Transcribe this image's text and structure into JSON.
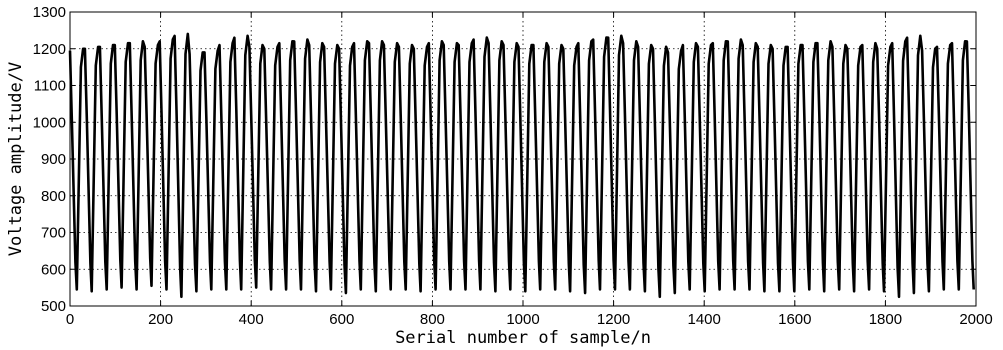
{
  "chart_data": {
    "type": "line",
    "title": "",
    "xlabel": "Serial number of sample/n",
    "ylabel": "Voltage amplitude/V",
    "xlim": [
      0,
      2000
    ],
    "ylim": [
      500,
      1300
    ],
    "x_ticks": [
      0,
      200,
      400,
      600,
      800,
      1000,
      1200,
      1400,
      1600,
      1800,
      2000
    ],
    "y_ticks": [
      500,
      600,
      700,
      800,
      900,
      1000,
      1100,
      1200,
      1300
    ],
    "x_tick_labels": [
      "0",
      "200",
      "400",
      "600",
      "800",
      "1000",
      "1200",
      "1400",
      "1600",
      "1800",
      "2000"
    ],
    "y_tick_labels": [
      "500",
      "600",
      "700",
      "800",
      "900",
      "1000",
      "1100",
      "1200",
      "1300"
    ],
    "grid": "dotted",
    "line_color": "#000000",
    "series": [
      {
        "description": "periodic sawtooth-like voltage signal, about 60 cycles over 2000 samples",
        "period": 33,
        "points_per_cycle": [
          {
            "x": 0,
            "y": 1195
          },
          {
            "x": 4,
            "y": 1010
          },
          {
            "x": 12,
            "y": 620
          },
          {
            "x": 15,
            "y": 545
          },
          {
            "x": 24,
            "y": 1150
          },
          {
            "x": 29,
            "y": 1200
          },
          {
            "x": 33,
            "y": 1195
          }
        ],
        "peak_values_sampled": [
          1195,
          1200,
          1205,
          1210,
          1215,
          1205,
          1220,
          1235,
          1185,
          1190,
          1210,
          1230,
          1205,
          1200,
          1215,
          1220,
          1210,
          1205,
          1200,
          1215,
          1215,
          1210,
          1205,
          1200,
          1215,
          1210,
          1210,
          1225,
          1215,
          1210,
          1205,
          1210,
          1205,
          1200,
          1215,
          1225,
          1230,
          1215,
          1205,
          1200,
          1190,
          1210,
          1205,
          1215,
          1220,
          1210,
          1205,
          1200,
          1205,
          1210,
          1215,
          1205,
          1200,
          1210,
          1200,
          1215,
          1230,
          1195,
          1205,
          1215,
          1220
        ],
        "trough_values_sampled": [
          545,
          540,
          545,
          550,
          545,
          555,
          545,
          525,
          540,
          545,
          545,
          545,
          550,
          545,
          545,
          545,
          540,
          545,
          535,
          545,
          540,
          545,
          545,
          540,
          545,
          545,
          545,
          545,
          540,
          545,
          540,
          545,
          545,
          540,
          535,
          545,
          545,
          545,
          540,
          525,
          535,
          545,
          540,
          545,
          545,
          545,
          540,
          540,
          540,
          545,
          540,
          545,
          540,
          545,
          540,
          525,
          535,
          540,
          545,
          545,
          545
        ]
      }
    ]
  }
}
